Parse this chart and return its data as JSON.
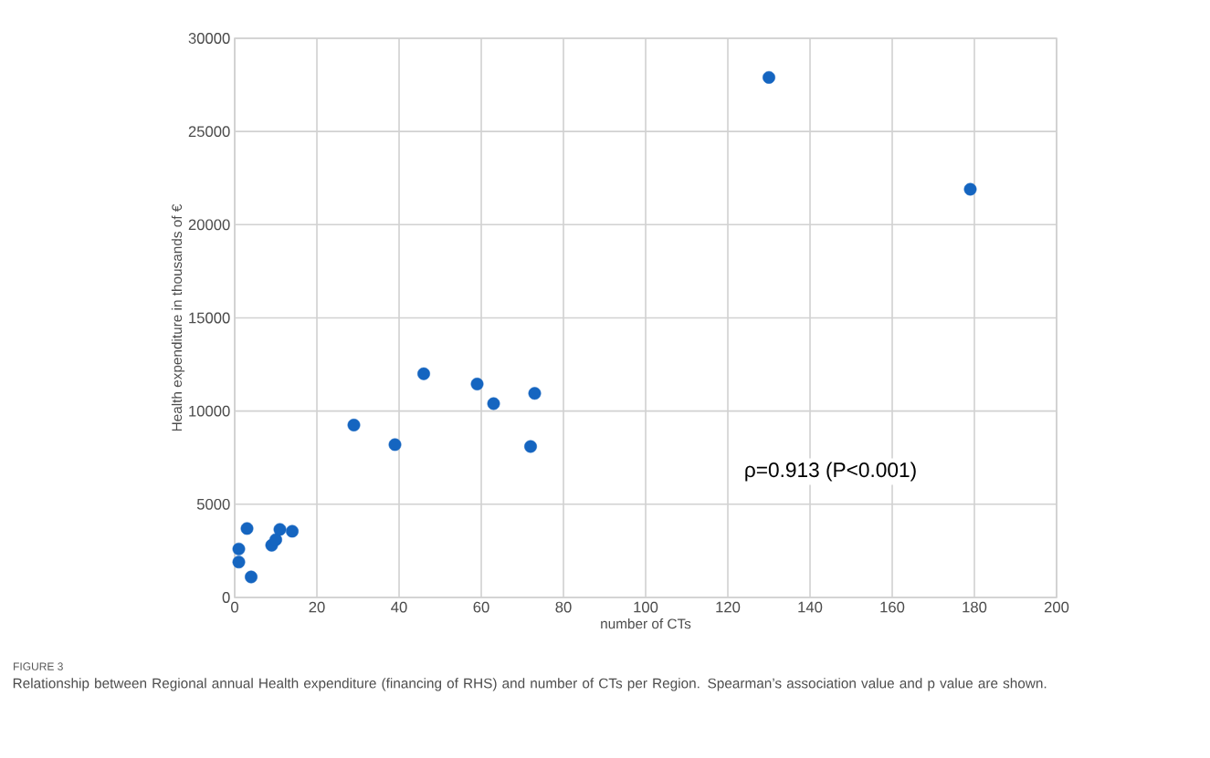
{
  "chart_data": {
    "type": "scatter",
    "xlabel": "number of CTs",
    "ylabel": "Health expenditure in thousands of €",
    "x": [
      1,
      1,
      4,
      3,
      9,
      10,
      11,
      14,
      29,
      39,
      46,
      59,
      63,
      73,
      72,
      130,
      179
    ],
    "values": [
      2600,
      1900,
      1100,
      3700,
      2800,
      3100,
      3650,
      3550,
      9250,
      8200,
      12000,
      11450,
      10400,
      10950,
      8100,
      27900,
      21900
    ],
    "color": "#1565c0",
    "xlim": [
      0,
      200
    ],
    "xticks": [
      0,
      20,
      40,
      60,
      80,
      100,
      120,
      140,
      160,
      180,
      200
    ],
    "ylim": [
      0,
      30000
    ],
    "yticks": [
      0,
      5000,
      10000,
      15000,
      20000,
      25000,
      30000
    ],
    "grid": true,
    "annotations": [
      "ρ=0.913 (P<0.001)",
      "FIGURE 3",
      "Relationship between Regional annual Health expenditure (financing of RHS) and number of CTs per Region. Spearman’s association value and p value are shown."
    ]
  }
}
